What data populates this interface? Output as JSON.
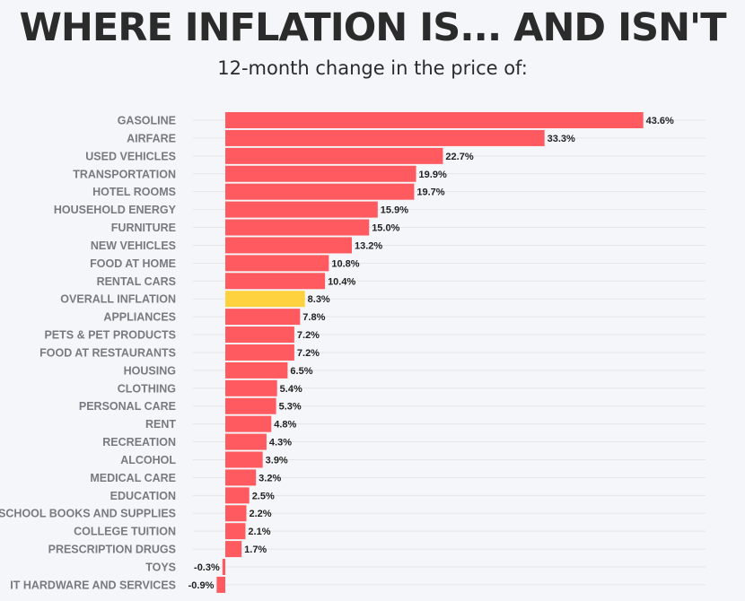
{
  "header": {
    "title": "WHERE INFLATION IS... AND ISN'T",
    "subtitle": "12-month change in the price of:"
  },
  "colors": {
    "bar": "#ff5a5f",
    "highlight": "#fdd23e",
    "grid": "#e3e5e8",
    "category_text": "#777a80",
    "value_text": "#222222",
    "background": "#f4f6f9"
  },
  "chart_data": {
    "type": "bar",
    "orientation": "horizontal",
    "title": "WHERE INFLATION IS... AND ISN'T",
    "subtitle": "12-month change in the price of:",
    "xlim": [
      -1,
      44
    ],
    "grid": true,
    "highlight_category": "OVERALL INFLATION",
    "categories": [
      "GASOLINE",
      "AIRFARE",
      "USED VEHICLES",
      "TRANSPORTATION",
      "HOTEL ROOMS",
      "HOUSEHOLD ENERGY",
      "FURNITURE",
      "NEW VEHICLES",
      "FOOD AT HOME",
      "RENTAL CARS",
      "OVERALL INFLATION",
      "APPLIANCES",
      "PETS & PET PRODUCTS",
      "FOOD AT RESTAURANTS",
      "HOUSING",
      "CLOTHING",
      "PERSONAL CARE",
      "RENT",
      "RECREATION",
      "ALCOHOL",
      "MEDICAL CARE",
      "EDUCATION",
      "SCHOOL BOOKS AND SUPPLIES",
      "COLLEGE TUITION",
      "PRESCRIPTION DRUGS",
      "TOYS",
      "IT HARDWARE AND SERVICES"
    ],
    "values": [
      43.6,
      33.3,
      22.7,
      19.9,
      19.7,
      15.9,
      15.0,
      13.2,
      10.8,
      10.4,
      8.3,
      7.8,
      7.2,
      7.2,
      6.5,
      5.4,
      5.3,
      4.8,
      4.3,
      3.9,
      3.2,
      2.5,
      2.2,
      2.1,
      1.7,
      -0.3,
      -0.9
    ],
    "value_labels": [
      "43.6%",
      "33.3%",
      "22.7%",
      "19.9%",
      "19.7%",
      "15.9%",
      "15.0%",
      "13.2%",
      "10.8%",
      "10.4%",
      "8.3%",
      "7.8%",
      "7.2%",
      "7.2%",
      "6.5%",
      "5.4%",
      "5.3%",
      "4.8%",
      "4.3%",
      "3.9%",
      "3.2%",
      "2.5%",
      "2.2%",
      "2.1%",
      "1.7%",
      "-0.3%",
      "-0.9%"
    ]
  }
}
